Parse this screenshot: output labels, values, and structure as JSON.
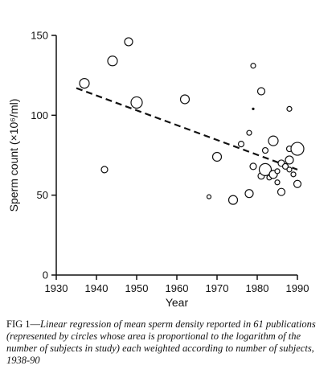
{
  "chart_data": {
    "type": "scatter",
    "xlabel": "Year",
    "ylabel": "Sperm count (×10⁶/ml)",
    "xlim": [
      1930,
      1990
    ],
    "ylim": [
      0,
      150
    ],
    "xticks": [
      1930,
      1940,
      1950,
      1960,
      1970,
      1980,
      1990
    ],
    "yticks": [
      0,
      50,
      100,
      150
    ],
    "regression_line": {
      "x": [
        1935,
        1990
      ],
      "y": [
        117,
        66
      ]
    },
    "points": [
      {
        "x": 1937,
        "y": 120,
        "w": 6
      },
      {
        "x": 1942,
        "y": 66,
        "w": 4
      },
      {
        "x": 1944,
        "y": 134,
        "w": 6
      },
      {
        "x": 1948,
        "y": 146,
        "w": 5
      },
      {
        "x": 1950,
        "y": 108,
        "w": 7
      },
      {
        "x": 1962,
        "y": 110,
        "w": 5.5
      },
      {
        "x": 1968,
        "y": 49,
        "w": 2.5
      },
      {
        "x": 1970,
        "y": 74,
        "w": 5.5
      },
      {
        "x": 1974,
        "y": 47,
        "w": 5.5
      },
      {
        "x": 1976,
        "y": 82,
        "w": 3.5
      },
      {
        "x": 1978,
        "y": 51,
        "w": 5
      },
      {
        "x": 1978,
        "y": 89,
        "w": 3
      },
      {
        "x": 1979,
        "y": 131,
        "w": 3
      },
      {
        "x": 1979,
        "y": 104,
        "w": 1
      },
      {
        "x": 1979,
        "y": 68,
        "w": 4
      },
      {
        "x": 1981,
        "y": 115,
        "w": 4.5
      },
      {
        "x": 1981,
        "y": 62,
        "w": 4
      },
      {
        "x": 1982,
        "y": 66,
        "w": 7.5
      },
      {
        "x": 1982,
        "y": 78,
        "w": 3.5
      },
      {
        "x": 1983,
        "y": 61,
        "w": 3
      },
      {
        "x": 1984,
        "y": 84,
        "w": 6
      },
      {
        "x": 1984,
        "y": 63,
        "w": 5
      },
      {
        "x": 1985,
        "y": 58,
        "w": 3
      },
      {
        "x": 1985,
        "y": 65,
        "w": 3
      },
      {
        "x": 1986,
        "y": 70,
        "w": 4
      },
      {
        "x": 1986,
        "y": 52,
        "w": 4.5
      },
      {
        "x": 1987,
        "y": 68,
        "w": 3.5
      },
      {
        "x": 1988,
        "y": 104,
        "w": 3
      },
      {
        "x": 1988,
        "y": 79,
        "w": 3.5
      },
      {
        "x": 1988,
        "y": 72,
        "w": 5
      },
      {
        "x": 1988,
        "y": 66,
        "w": 3
      },
      {
        "x": 1989,
        "y": 63,
        "w": 3
      },
      {
        "x": 1990,
        "y": 79,
        "w": 8
      },
      {
        "x": 1990,
        "y": 57,
        "w": 4.5
      }
    ]
  },
  "caption": {
    "fig_label": "FIG 1—",
    "text": "Linear regression of mean sperm density reported in 61 publications (represented by circles whose area is proportional to the logarithm of the number of subjects in study) each weighted according to number of subjects, 1938-90"
  }
}
